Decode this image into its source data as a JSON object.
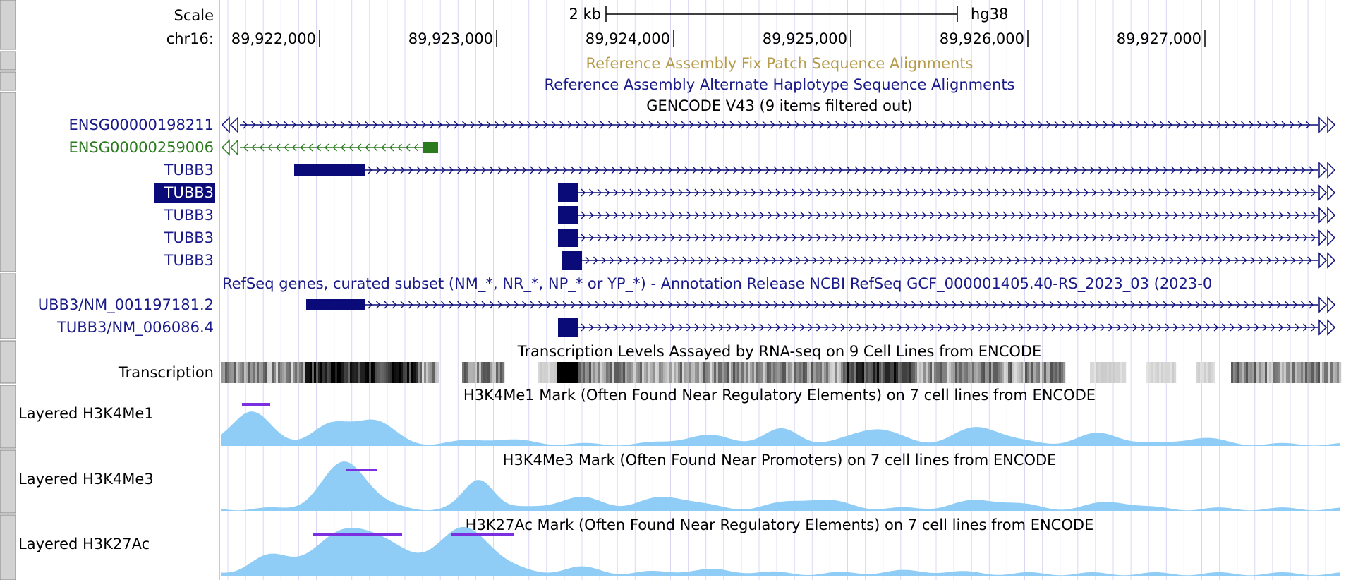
{
  "assembly": "hg38",
  "scale": {
    "label": "Scale",
    "bar_text": "2 kb"
  },
  "ruler": {
    "chrom_label": "chr16:",
    "ticks": [
      {
        "pos": 89922000,
        "label": "89,922,000"
      },
      {
        "pos": 89923000,
        "label": "89,923,000"
      },
      {
        "pos": 89924000,
        "label": "89,924,000"
      },
      {
        "pos": 89925000,
        "label": "89,925,000"
      },
      {
        "pos": 89926000,
        "label": "89,926,000"
      },
      {
        "pos": 89927000,
        "label": "89,927,000"
      }
    ]
  },
  "tracks": {
    "fix_patch": {
      "title": "Reference Assembly Fix Patch Sequence Alignments",
      "color": "#b59b4a"
    },
    "alt_haplo": {
      "title": "Reference Assembly Alternate Haplotype Sequence Alignments",
      "color": "#1a1a8a"
    },
    "gencode": {
      "title": "GENCODE V43 (9 items filtered out)",
      "items": [
        {
          "label": "ENSG00000198211",
          "color": "#1a1a8a",
          "strand": "+",
          "highlight": false
        },
        {
          "label": "ENSG00000259006",
          "color": "#2b7a1e",
          "strand": "-",
          "highlight": false
        },
        {
          "label": "TUBB3",
          "color": "#1a1a8a",
          "strand": "+",
          "highlight": false
        },
        {
          "label": "TUBB3",
          "color": "#1a1a8a",
          "strand": "+",
          "highlight": true
        },
        {
          "label": "TUBB3",
          "color": "#1a1a8a",
          "strand": "+",
          "highlight": false
        },
        {
          "label": "TUBB3",
          "color": "#1a1a8a",
          "strand": "+",
          "highlight": false
        },
        {
          "label": "TUBB3",
          "color": "#1a1a8a",
          "strand": "+",
          "highlight": false
        }
      ]
    },
    "refseq": {
      "title": "RefSeq genes, curated subset (NM_*, NR_*, NP_* or YP_*) - Annotation Release NCBI RefSeq GCF_000001405.40-RS_2023_03 (2023-0",
      "items": [
        {
          "label": "UBB3/NM_001197181.2",
          "color": "#1a1a8a"
        },
        {
          "label": "TUBB3/NM_006086.4",
          "color": "#1a1a8a"
        }
      ]
    },
    "transcription": {
      "title": "Transcription Levels Assayed by RNA-seq on 9 Cell Lines from ENCODE",
      "label": "Transcription"
    },
    "h3k4me1": {
      "title": "H3K4Me1 Mark (Often Found Near Regulatory Elements) on 7 cell lines from ENCODE",
      "label": "Layered H3K4Me1"
    },
    "h3k4me3": {
      "title": "H3K4Me3 Mark (Often Found Near Promoters) on 7 cell lines from ENCODE",
      "label": "Layered H3K4Me3"
    },
    "h3k27ac": {
      "title": "H3K27Ac Mark (Often Found Near Regulatory Elements) on 7 cell lines from ENCODE",
      "label": "Layered H3K27Ac"
    }
  },
  "colors": {
    "signal": "#8fcdf7",
    "peak_line": "#7b2fe0",
    "gene": "#0a0a78",
    "grid": "#d8d8f4",
    "label_text": "#2a2a8a"
  }
}
